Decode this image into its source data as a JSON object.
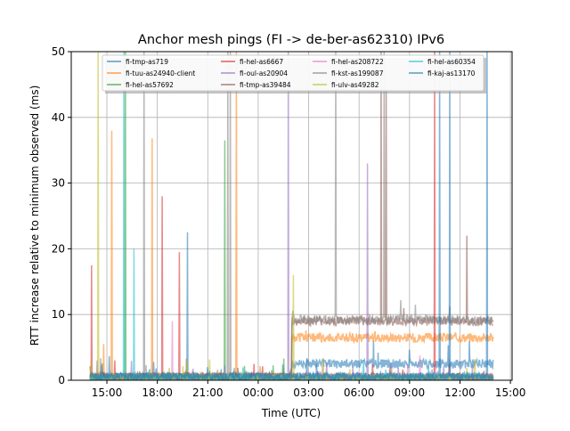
{
  "chart_data": {
    "type": "line",
    "title": "Anchor mesh pings (FI -> de-ber-as62310) IPv6",
    "xlabel": "Time (UTC)",
    "ylabel": "RTT increase relative to minimum observed (ms)",
    "x_units": "hours since 00:00 of first day",
    "xlim": [
      12.88,
      39.1
    ],
    "ylim": [
      0,
      50
    ],
    "yticks": [
      0,
      10,
      20,
      30,
      40,
      50
    ],
    "xticks": [
      {
        "value": 15,
        "label": "15:00"
      },
      {
        "value": 18,
        "label": "18:00"
      },
      {
        "value": 21,
        "label": "21:00"
      },
      {
        "value": 24,
        "label": "00:00"
      },
      {
        "value": 27,
        "label": "03:00"
      },
      {
        "value": 30,
        "label": "06:00"
      },
      {
        "value": 33,
        "label": "09:00"
      },
      {
        "value": 36,
        "label": "12:00"
      },
      {
        "value": 39,
        "label": "15:00"
      }
    ],
    "grid": true,
    "legend_position": "top-center",
    "data_range": [
      14.0,
      38.0
    ],
    "series": [
      {
        "name": "fi-tmp-as719",
        "color": "#1f77b4",
        "base": 0.5,
        "levels": [
          [
            26.0,
            2.5
          ]
        ],
        "spikes": [
          [
            19.8,
            22.5
          ]
        ]
      },
      {
        "name": "fi-tuu-as24940-client",
        "color": "#ff7f0e",
        "base": 0.6,
        "levels": [
          [
            26.0,
            6.5
          ]
        ],
        "spikes": [
          [
            15.3,
            38
          ],
          [
            17.7,
            36.8
          ],
          [
            22.7,
            50
          ],
          [
            14.8,
            5.5
          ]
        ]
      },
      {
        "name": "fi-hel-as57692",
        "color": "#2ca02c",
        "base": 0.4,
        "levels": [],
        "spikes": [
          [
            16.1,
            50
          ],
          [
            22.0,
            36.5
          ]
        ]
      },
      {
        "name": "fi-hel-as6667",
        "color": "#d62728",
        "base": 0.5,
        "levels": [],
        "spikes": [
          [
            14.1,
            17.5
          ],
          [
            18.3,
            28
          ],
          [
            19.3,
            19.5
          ],
          [
            34.5,
            50
          ]
        ]
      },
      {
        "name": "fi-oul-as20904",
        "color": "#9467bd",
        "base": 0.5,
        "levels": [],
        "spikes": [
          [
            25.8,
            50
          ],
          [
            30.5,
            33
          ]
        ]
      },
      {
        "name": "fi-tmp-as39484",
        "color": "#8c564b",
        "base": 0.5,
        "levels": [
          [
            26.0,
            9.0
          ]
        ],
        "spikes": [
          [
            31.3,
            50
          ],
          [
            31.6,
            45
          ],
          [
            36.4,
            22
          ]
        ]
      },
      {
        "name": "fi-hel-as208722",
        "color": "#e377c2",
        "base": 0.4,
        "levels": [],
        "spikes": [
          [
            18.9,
            9
          ]
        ]
      },
      {
        "name": "fi-kst-as199087",
        "color": "#7f7f7f",
        "base": 0.5,
        "levels": [
          [
            26.0,
            9.2
          ]
        ],
        "spikes": [
          [
            17.2,
            50
          ],
          [
            22.2,
            50
          ],
          [
            22.35,
            50
          ],
          [
            28.6,
            50
          ],
          [
            31.5,
            50
          ]
        ]
      },
      {
        "name": "fi-ulv-as49282",
        "color": "#bcbd22",
        "base": 0.4,
        "levels": [],
        "spikes": [
          [
            14.47,
            50
          ],
          [
            26.1,
            16
          ]
        ]
      },
      {
        "name": "fi-hel-as60354",
        "color": "#17becf",
        "base": 0.5,
        "levels": [],
        "spikes": [
          [
            16.0,
            50
          ],
          [
            16.6,
            20
          ]
        ]
      },
      {
        "name": "fi-kaj-as13170",
        "color": "#1f77b4",
        "base": 0.6,
        "levels": [],
        "spikes": [
          [
            34.8,
            50
          ],
          [
            35.4,
            50
          ],
          [
            37.6,
            50
          ]
        ]
      }
    ]
  }
}
